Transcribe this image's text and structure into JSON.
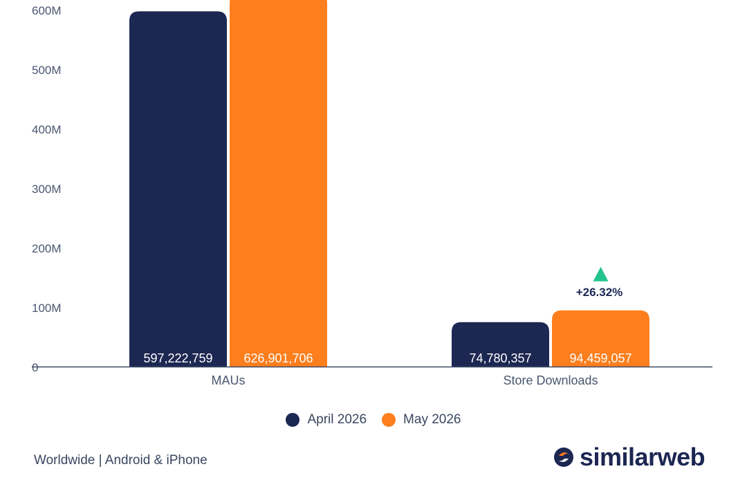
{
  "chart_data": {
    "type": "bar",
    "categories": [
      "MAUs",
      "Store Downloads"
    ],
    "series": [
      {
        "name": "April 2026",
        "values": [
          597222759,
          74780357
        ],
        "labels": [
          "597,222,759",
          "74,780,357"
        ],
        "color": "#1c2752"
      },
      {
        "name": "May 2026",
        "values": [
          626901706,
          94459057
        ],
        "labels": [
          "626,901,706",
          "94,459,057"
        ],
        "color": "#fd7e1d"
      }
    ],
    "ylim": [
      0,
      600000000
    ],
    "yticks": [
      0,
      100000000,
      200000000,
      300000000,
      400000000,
      500000000,
      600000000
    ],
    "ytick_labels": [
      "0",
      "100M",
      "200M",
      "300M",
      "400M",
      "500M",
      "600M"
    ],
    "annotation": {
      "category": "Store Downloads",
      "text": "+26.32%",
      "color": "#23c38e"
    },
    "legend_position": "bottom"
  },
  "legend": [
    {
      "label": "April 2026",
      "color": "#1c2752"
    },
    {
      "label": "May 2026",
      "color": "#fd7e1d"
    }
  ],
  "footer": {
    "note": "Worldwide | Android & iPhone"
  },
  "brand": {
    "name": "similarweb",
    "logo_icon": "similarweb-logo-icon"
  }
}
